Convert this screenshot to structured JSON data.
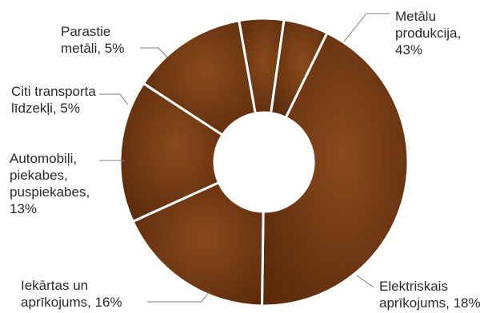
{
  "chart_data": {
    "type": "pie",
    "subtype": "donut",
    "title": "",
    "slices": [
      {
        "label_lines": [
          "Metālu",
          "produkcija,",
          "43%"
        ],
        "category": "Metālu produkcija",
        "value": 43
      },
      {
        "label_lines": [
          "Elektriskais",
          "aprīkojums, 18%"
        ],
        "category": "Elektriskais aprīkojums",
        "value": 18
      },
      {
        "label_lines": [
          "Iekārtas un",
          "aprīkojums, 16%"
        ],
        "category": "Iekārtas un aprīkojums",
        "value": 16
      },
      {
        "label_lines": [
          "Automobiļi,",
          "piekabes,",
          "puspiekabes,",
          "13%"
        ],
        "category": "Automobiļi, piekabes, puspiekabes",
        "value": 13
      },
      {
        "label_lines": [
          "Citi transporta",
          "līdzekļi, 5%"
        ],
        "category": "Citi transporta līdzekļi",
        "value": 5
      },
      {
        "label_lines": [
          "Parastie",
          "metāli, 5%"
        ],
        "category": "Parastie metāli",
        "value": 5
      }
    ],
    "colors": {
      "fill_light": "#8a4a1c",
      "fill_dark": "#5c2c0c",
      "separator": "#ffffff",
      "leader": "#7a7a7a"
    },
    "legend": "none",
    "labels": "outside-with-leader-lines",
    "start_angle_deg": 26
  }
}
